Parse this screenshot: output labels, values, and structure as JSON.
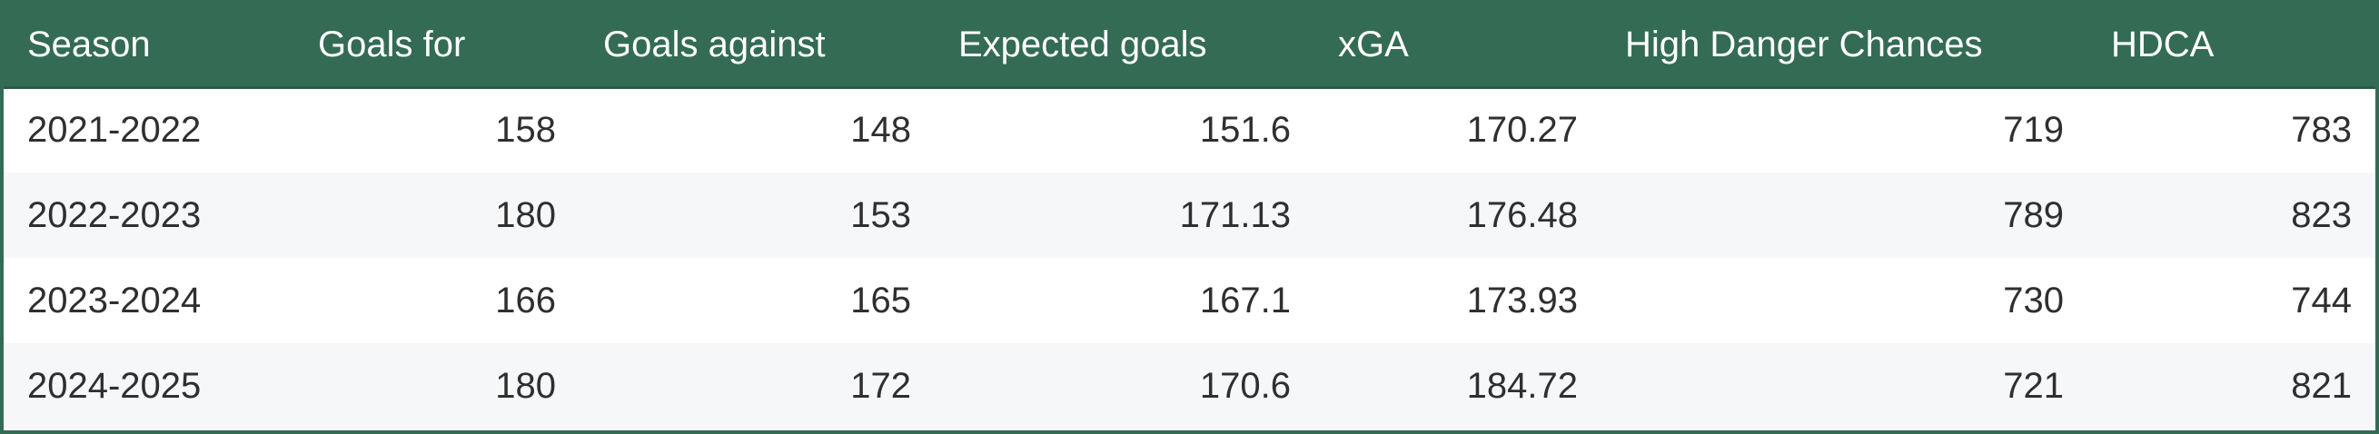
{
  "chart_data": {
    "type": "table",
    "columns": [
      "Season",
      "Goals for",
      "Goals against",
      "Expected goals",
      "xGA",
      "High Danger Chances",
      "HDCA"
    ],
    "rows": [
      [
        "2021-2022",
        "158",
        "148",
        "151.6",
        "170.27",
        "719",
        "783"
      ],
      [
        "2022-2023",
        "180",
        "153",
        "171.13",
        "176.48",
        "789",
        "823"
      ],
      [
        "2023-2024",
        "166",
        "165",
        "167.1",
        "173.93",
        "730",
        "744"
      ],
      [
        "2024-2025",
        "180",
        "172",
        "170.6",
        "184.72",
        "721",
        "821"
      ]
    ]
  },
  "colors": {
    "header_background": "#346b55",
    "header_text": "#ffffff",
    "row_alt_background": "#f6f7f9",
    "body_text": "#2f2f2f"
  }
}
